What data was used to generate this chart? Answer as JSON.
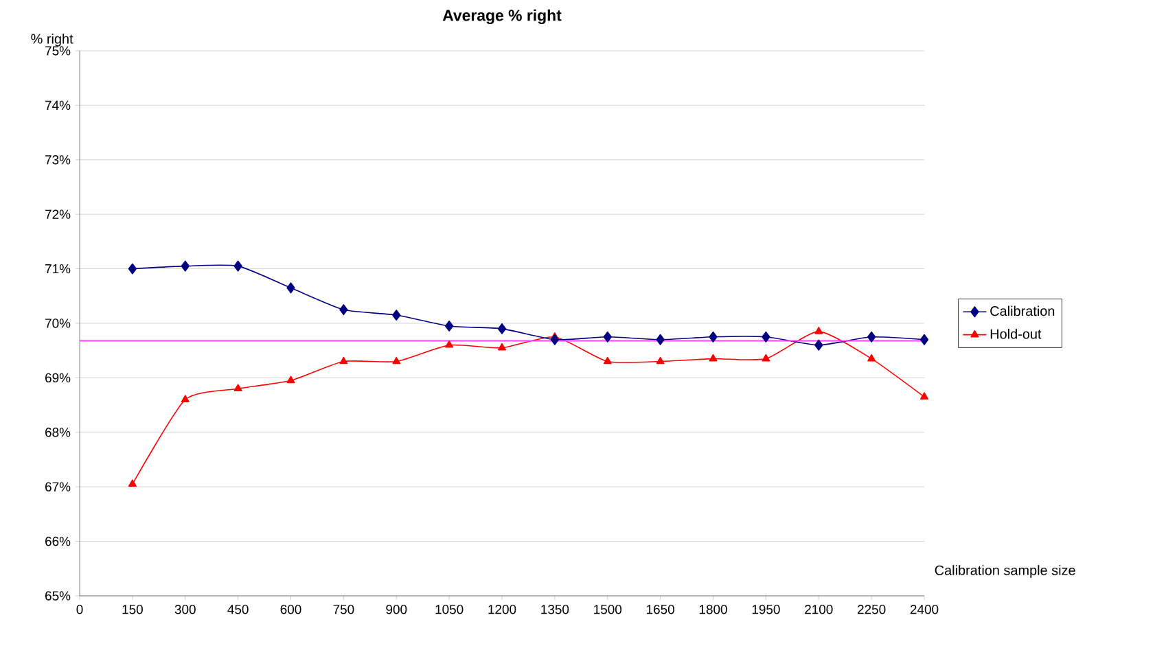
{
  "chart_data": {
    "type": "line",
    "title": "Average % right",
    "xlabel": "Calibration sample size",
    "ylabel": "% right",
    "x": [
      150,
      300,
      450,
      600,
      750,
      900,
      1050,
      1200,
      1350,
      1500,
      1650,
      1800,
      1950,
      2100,
      2250,
      2400
    ],
    "series": [
      {
        "name": "Calibration",
        "color": "#000080",
        "marker": "diamond",
        "values": [
          71.0,
          71.05,
          71.05,
          70.65,
          70.25,
          70.15,
          69.95,
          69.9,
          69.7,
          69.75,
          69.7,
          69.75,
          69.75,
          69.6,
          69.75,
          69.7
        ]
      },
      {
        "name": "Hold-out",
        "color": "#ff0000",
        "marker": "triangle",
        "values": [
          67.05,
          68.6,
          68.8,
          68.95,
          69.3,
          69.3,
          69.6,
          69.55,
          69.75,
          69.3,
          69.3,
          69.35,
          69.35,
          69.85,
          69.35,
          68.65
        ]
      }
    ],
    "ref_lines": [
      {
        "axis": "y",
        "value": 69.68,
        "color": "#ff40ff"
      }
    ],
    "xlim": [
      0,
      2400
    ],
    "ylim": [
      65,
      75
    ],
    "xticks": [
      0,
      150,
      300,
      450,
      600,
      750,
      900,
      1050,
      1200,
      1350,
      1500,
      1650,
      1800,
      1950,
      2100,
      2250,
      2400
    ],
    "yticks": [
      {
        "value": 65,
        "label": "65%"
      },
      {
        "value": 66,
        "label": "66%"
      },
      {
        "value": 67,
        "label": "67%"
      },
      {
        "value": 68,
        "label": "68%"
      },
      {
        "value": 69,
        "label": "69%"
      },
      {
        "value": 70,
        "label": "70%"
      },
      {
        "value": 71,
        "label": "71%"
      },
      {
        "value": 72,
        "label": "72%"
      },
      {
        "value": 73,
        "label": "73%"
      },
      {
        "value": 74,
        "label": "74%"
      },
      {
        "value": 75,
        "label": "75%"
      }
    ],
    "grid": "y",
    "legend": "right"
  }
}
